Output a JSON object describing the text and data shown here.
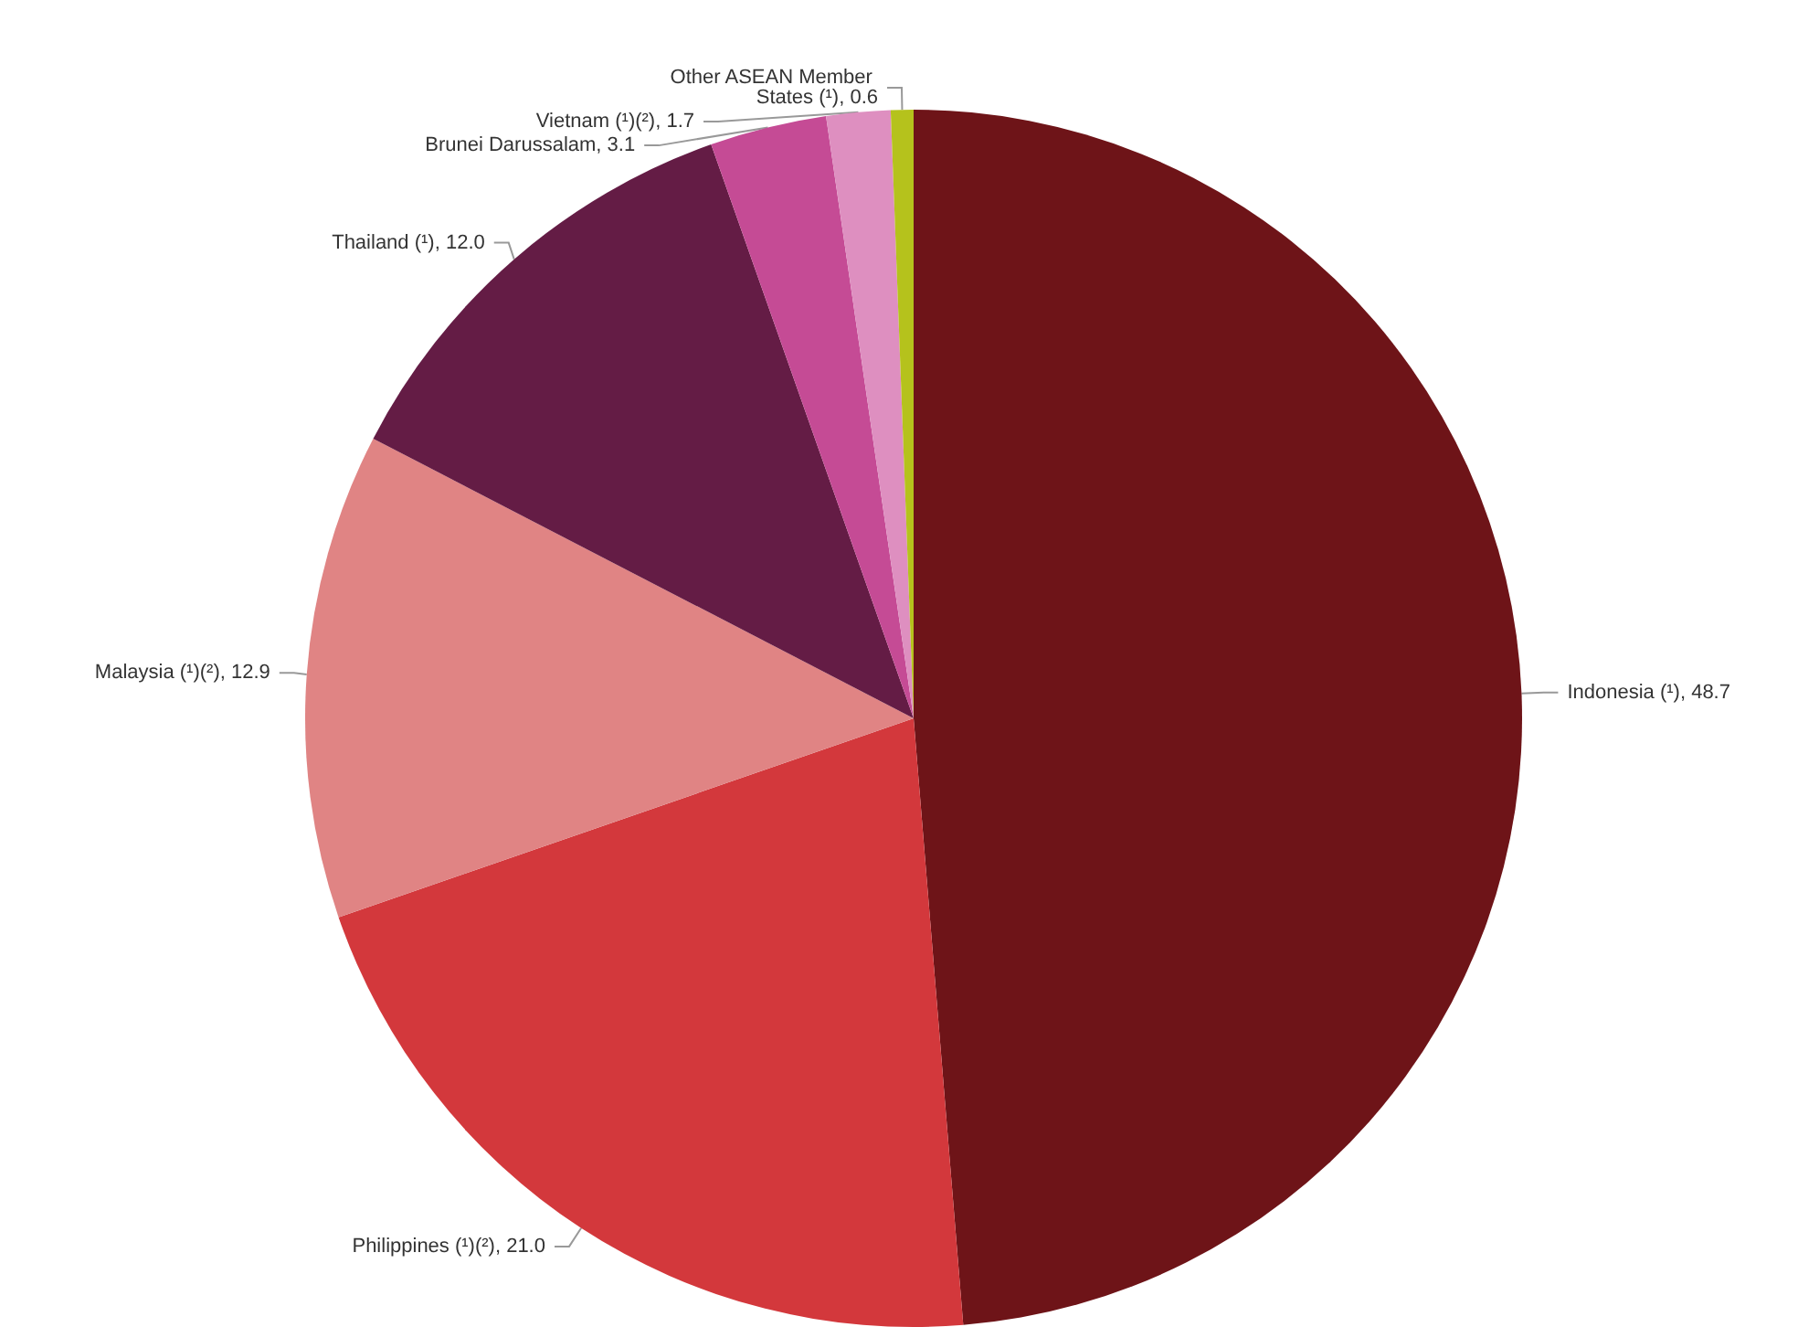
{
  "chart_data": {
    "type": "pie",
    "categories": [
      "Indonesia (¹)",
      "Philippines (¹)(²)",
      "Malaysia (¹)(²)",
      "Thailand (¹)",
      "Brunei Darussalam",
      "Vietnam (¹)(²)",
      "Other ASEAN Member States (¹)"
    ],
    "values": [
      48.7,
      21.0,
      12.9,
      12.0,
      3.1,
      1.7,
      0.6
    ],
    "value_labels": [
      "48.7",
      "21.0",
      "12.9",
      "12.0",
      "3.1",
      "1.7",
      "0.6"
    ],
    "colors": [
      "#6e1418",
      "#d3383c",
      "#e08484",
      "#641c45",
      "#c54b95",
      "#de8fc0",
      "#b5c21c"
    ],
    "legend": false
  }
}
